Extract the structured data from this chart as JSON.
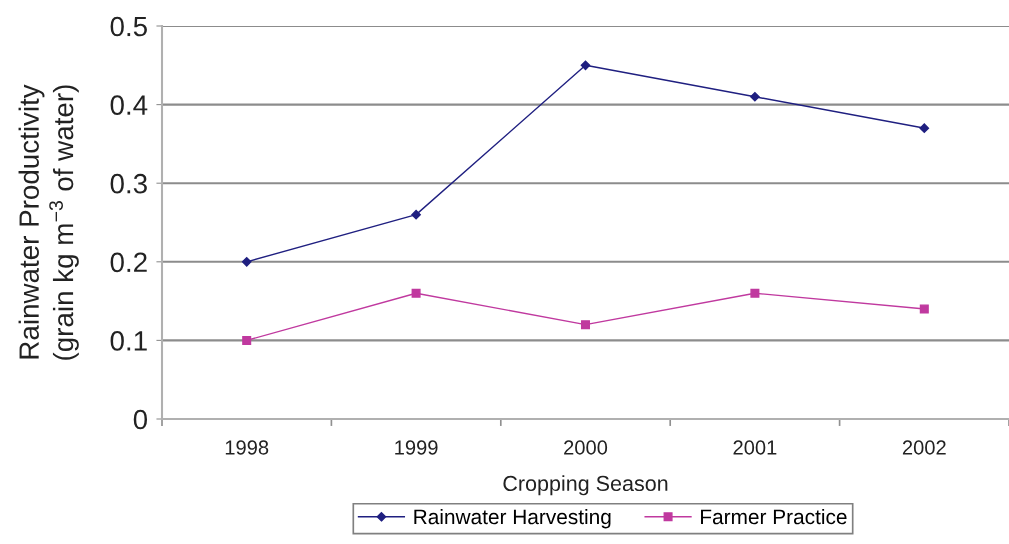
{
  "chart_data": {
    "type": "line",
    "xlabel": "Cropping Season",
    "ylabel": "Rainwater Productivity\n(grain kg m$^{−3}$ of water)",
    "categories": [
      "1998",
      "1999",
      "2000",
      "2001",
      "2002"
    ],
    "series": [
      {
        "name": "Rainwater Harvesting",
        "color": "#1f1f80",
        "marker": "diamond",
        "values": [
          0.2,
          0.26,
          0.45,
          0.41,
          0.37
        ]
      },
      {
        "name": "Farmer Practice",
        "color": "#c0399f",
        "marker": "square",
        "values": [
          0.1,
          0.16,
          0.12,
          0.16,
          0.14
        ]
      }
    ],
    "ylim": [
      0,
      0.5
    ],
    "yticks": [
      0,
      0.1,
      0.2,
      0.3,
      0.4,
      0.5
    ],
    "grid": "y",
    "legend": "bottom",
    "line_style": "solid"
  }
}
